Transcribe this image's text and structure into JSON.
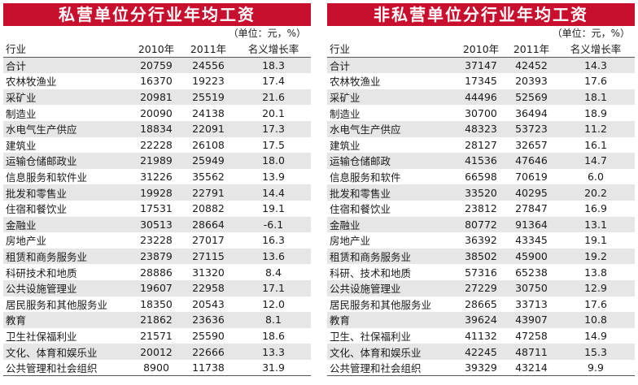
{
  "style": {
    "banner_color": "#c8102e",
    "stripe_color": "#e6e6e6"
  },
  "left": {
    "title": "私营单位分行业年均工资",
    "unit": "（单位：元，%）",
    "headers": [
      "行业",
      "2010年",
      "2011年",
      "名义增长率"
    ],
    "rows": [
      [
        "合计",
        "20759",
        "24556",
        "18.3"
      ],
      [
        "农林牧渔业",
        "16370",
        "19223",
        "17.4"
      ],
      [
        "采矿业",
        "20981",
        "25519",
        "21.6"
      ],
      [
        "制造业",
        "20090",
        "24138",
        "20.1"
      ],
      [
        "水电气生产供应",
        "18834",
        "22091",
        "17.3"
      ],
      [
        "建筑业",
        "22228",
        "26108",
        "17.5"
      ],
      [
        "运输仓储邮政业",
        "21989",
        "25949",
        "18.0"
      ],
      [
        "信息服务和软件业",
        "31226",
        "35562",
        "13.9"
      ],
      [
        "批发和零售业",
        "19928",
        "22791",
        "14.4"
      ],
      [
        "住宿和餐饮业",
        "17531",
        "20882",
        "19.1"
      ],
      [
        "金融业",
        "30513",
        "28664",
        "-6.1"
      ],
      [
        "房地产业",
        "23228",
        "27017",
        "16.3"
      ],
      [
        "租赁和商务服务业",
        "23879",
        "27115",
        "13.6"
      ],
      [
        "科研技术和地质",
        "28886",
        "31320",
        "8.4"
      ],
      [
        "公共设施管理业",
        "19607",
        "22958",
        "17.1"
      ],
      [
        "居民服务和其他服务业",
        "18350",
        "20543",
        "12.0"
      ],
      [
        "教育",
        "21862",
        "23636",
        "8.1"
      ],
      [
        "卫生社保福利业",
        "21571",
        "25590",
        "18.6"
      ],
      [
        "文化、体育和娱乐业",
        "20012",
        "22666",
        "13.3"
      ],
      [
        "公共管理和社会组织",
        "8900",
        "11738",
        "31.9"
      ]
    ]
  },
  "right": {
    "title": "非私营单位分行业年均工资",
    "unit": "（单位：元，%）",
    "headers": [
      "行业",
      "2010年",
      "2011年",
      "名义增长率"
    ],
    "rows": [
      [
        "合计",
        "37147",
        "42452",
        "14.3"
      ],
      [
        "农林牧渔业",
        "17345",
        "20393",
        "17.6"
      ],
      [
        "采矿业",
        "44496",
        "52569",
        "18.1"
      ],
      [
        "制造业",
        "30700",
        "36494",
        "18.9"
      ],
      [
        "水电气生产供应",
        "48323",
        "53723",
        "11.2"
      ],
      [
        "建筑业",
        "28127",
        "32657",
        "16.1"
      ],
      [
        "运输仓储邮政",
        "41536",
        "47646",
        "14.7"
      ],
      [
        "信息服务和软件",
        "66598",
        "70619",
        "6.0"
      ],
      [
        "批发和零售业",
        "33520",
        "40295",
        "20.2"
      ],
      [
        "住宿和餐饮业",
        "23812",
        "27847",
        "16.9"
      ],
      [
        "金融业",
        "80772",
        "91364",
        "13.1"
      ],
      [
        "房地产业",
        "36392",
        "43345",
        "19.1"
      ],
      [
        "租赁和商务服务业",
        "38502",
        "45900",
        "19.2"
      ],
      [
        "科研、技术和地质",
        "57316",
        "65238",
        "13.8"
      ],
      [
        "公共设施管理业",
        "27229",
        "30750",
        "12.9"
      ],
      [
        "居民服务和其他服务业",
        "28665",
        "33713",
        "17.6"
      ],
      [
        "教育",
        "39624",
        "43907",
        "10.8"
      ],
      [
        "卫生、社保福利业",
        "41132",
        "47258",
        "14.9"
      ],
      [
        "文化、体育和娱乐业",
        "42245",
        "48711",
        "15.3"
      ],
      [
        "公共管理和社会组织",
        "39329",
        "43214",
        "9.9"
      ]
    ]
  }
}
